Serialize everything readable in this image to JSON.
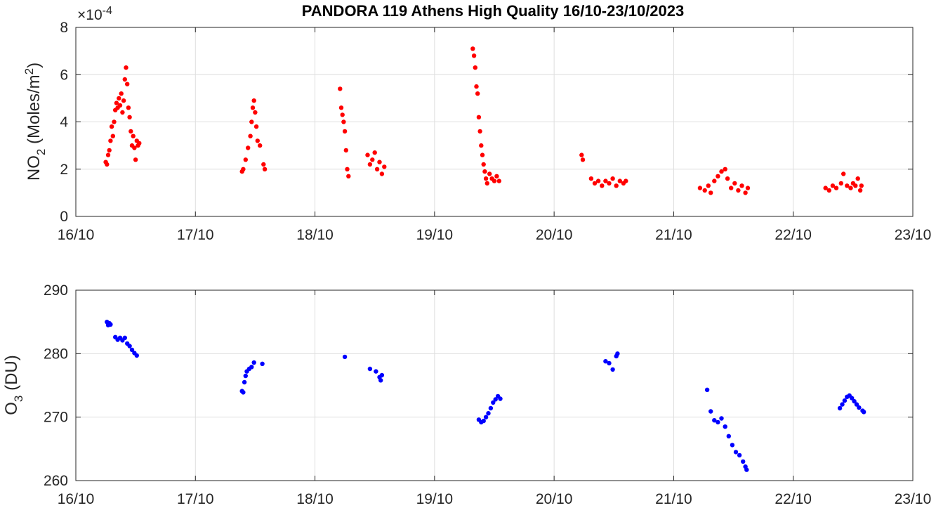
{
  "title": "PANDORA 119 Athens High Quality 16/10-23/10/2023",
  "chart_data": [
    {
      "type": "scatter",
      "ylabel_main": "NO",
      "ylabel_sub": "2",
      "ylabel_units_pre": "(Moles/m",
      "ylabel_units_sup": "2",
      "ylabel_units_post": ")",
      "y_exponent_base": "×10",
      "y_exponent_power": "-4",
      "xlim": [
        16,
        23
      ],
      "ylim": [
        0,
        8
      ],
      "x_ticks": [
        16,
        17,
        18,
        19,
        20,
        21,
        22,
        23
      ],
      "x_tick_labels": [
        "16/10",
        "17/10",
        "18/10",
        "19/10",
        "20/10",
        "21/10",
        "22/10",
        "23/10"
      ],
      "y_ticks": [
        0,
        2,
        4,
        6,
        8
      ],
      "y_tick_labels": [
        "0",
        "2",
        "4",
        "6",
        "8"
      ],
      "grid": true,
      "color": "#ff0000",
      "series": [
        {
          "points": [
            [
              16.25,
              2.3
            ],
            [
              16.26,
              2.2
            ],
            [
              16.27,
              2.6
            ],
            [
              16.28,
              2.8
            ],
            [
              16.29,
              3.2
            ],
            [
              16.3,
              3.8
            ],
            [
              16.31,
              3.4
            ],
            [
              16.32,
              4.0
            ],
            [
              16.33,
              4.5
            ],
            [
              16.34,
              4.8
            ],
            [
              16.35,
              4.6
            ],
            [
              16.36,
              5.0
            ],
            [
              16.37,
              4.7
            ],
            [
              16.38,
              5.2
            ],
            [
              16.39,
              4.4
            ],
            [
              16.4,
              4.9
            ],
            [
              16.41,
              5.8
            ],
            [
              16.42,
              6.3
            ],
            [
              16.43,
              5.6
            ],
            [
              16.44,
              4.6
            ],
            [
              16.45,
              4.2
            ],
            [
              16.46,
              3.6
            ],
            [
              16.47,
              3.0
            ],
            [
              16.48,
              3.4
            ],
            [
              16.49,
              2.9
            ],
            [
              16.5,
              2.4
            ],
            [
              16.51,
              3.2
            ],
            [
              16.52,
              3.0
            ],
            [
              16.53,
              3.1
            ],
            [
              17.39,
              1.9
            ],
            [
              17.4,
              2.0
            ],
            [
              17.42,
              2.4
            ],
            [
              17.44,
              2.9
            ],
            [
              17.46,
              3.4
            ],
            [
              17.47,
              4.0
            ],
            [
              17.48,
              4.6
            ],
            [
              17.49,
              4.9
            ],
            [
              17.5,
              4.4
            ],
            [
              17.51,
              3.8
            ],
            [
              17.52,
              3.2
            ],
            [
              17.54,
              3.0
            ],
            [
              17.57,
              2.2
            ],
            [
              17.58,
              2.0
            ],
            [
              18.21,
              5.4
            ],
            [
              18.22,
              4.6
            ],
            [
              18.23,
              4.3
            ],
            [
              18.24,
              4.0
            ],
            [
              18.25,
              3.6
            ],
            [
              18.26,
              2.8
            ],
            [
              18.27,
              2.0
            ],
            [
              18.28,
              1.7
            ],
            [
              18.44,
              2.6
            ],
            [
              18.46,
              2.2
            ],
            [
              18.48,
              2.4
            ],
            [
              18.5,
              2.7
            ],
            [
              18.52,
              2.0
            ],
            [
              18.54,
              2.3
            ],
            [
              18.56,
              1.8
            ],
            [
              18.58,
              2.1
            ],
            [
              19.32,
              7.1
            ],
            [
              19.33,
              6.8
            ],
            [
              19.34,
              6.3
            ],
            [
              19.35,
              5.5
            ],
            [
              19.36,
              5.2
            ],
            [
              19.37,
              4.2
            ],
            [
              19.38,
              3.6
            ],
            [
              19.39,
              3.0
            ],
            [
              19.4,
              2.6
            ],
            [
              19.41,
              2.2
            ],
            [
              19.42,
              1.9
            ],
            [
              19.43,
              1.6
            ],
            [
              19.44,
              1.4
            ],
            [
              19.46,
              1.8
            ],
            [
              19.48,
              1.6
            ],
            [
              19.5,
              1.5
            ],
            [
              19.52,
              1.7
            ],
            [
              19.54,
              1.5
            ],
            [
              20.23,
              2.6
            ],
            [
              20.24,
              2.4
            ],
            [
              20.31,
              1.6
            ],
            [
              20.34,
              1.4
            ],
            [
              20.37,
              1.5
            ],
            [
              20.4,
              1.3
            ],
            [
              20.43,
              1.5
            ],
            [
              20.46,
              1.4
            ],
            [
              20.49,
              1.6
            ],
            [
              20.52,
              1.3
            ],
            [
              20.55,
              1.5
            ],
            [
              20.58,
              1.4
            ],
            [
              20.6,
              1.5
            ],
            [
              21.22,
              1.2
            ],
            [
              21.26,
              1.1
            ],
            [
              21.29,
              1.3
            ],
            [
              21.31,
              1.0
            ],
            [
              21.34,
              1.5
            ],
            [
              21.37,
              1.7
            ],
            [
              21.4,
              1.9
            ],
            [
              21.43,
              2.0
            ],
            [
              21.45,
              1.6
            ],
            [
              21.48,
              1.2
            ],
            [
              21.51,
              1.4
            ],
            [
              21.54,
              1.1
            ],
            [
              21.57,
              1.3
            ],
            [
              21.6,
              1.0
            ],
            [
              21.62,
              1.2
            ],
            [
              22.27,
              1.2
            ],
            [
              22.3,
              1.1
            ],
            [
              22.33,
              1.3
            ],
            [
              22.36,
              1.2
            ],
            [
              22.4,
              1.4
            ],
            [
              22.42,
              1.8
            ],
            [
              22.45,
              1.3
            ],
            [
              22.48,
              1.2
            ],
            [
              22.5,
              1.4
            ],
            [
              22.52,
              1.3
            ],
            [
              22.54,
              1.6
            ],
            [
              22.56,
              1.1
            ],
            [
              22.57,
              1.3
            ]
          ]
        }
      ]
    },
    {
      "type": "scatter",
      "ylabel_main": "O",
      "ylabel_sub": "3",
      "ylabel_units_pre": "(DU)",
      "xlim": [
        16,
        23
      ],
      "ylim": [
        260,
        290
      ],
      "x_ticks": [
        16,
        17,
        18,
        19,
        20,
        21,
        22,
        23
      ],
      "x_tick_labels": [
        "16/10",
        "17/10",
        "18/10",
        "19/10",
        "20/10",
        "21/10",
        "22/10",
        "23/10"
      ],
      "y_ticks": [
        260,
        270,
        280,
        290
      ],
      "y_tick_labels": [
        "260",
        "270",
        "280",
        "290"
      ],
      "grid": true,
      "color": "#0000ff",
      "series": [
        {
          "points": [
            [
              16.26,
              285.0
            ],
            [
              16.27,
              284.5
            ],
            [
              16.28,
              284.8
            ],
            [
              16.29,
              284.6
            ],
            [
              16.33,
              282.6
            ],
            [
              16.35,
              282.2
            ],
            [
              16.37,
              282.5
            ],
            [
              16.39,
              282.1
            ],
            [
              16.41,
              282.5
            ],
            [
              16.43,
              281.6
            ],
            [
              16.45,
              281.2
            ],
            [
              16.47,
              280.6
            ],
            [
              16.49,
              280.1
            ],
            [
              16.51,
              279.7
            ],
            [
              17.39,
              274.1
            ],
            [
              17.4,
              273.9
            ],
            [
              17.41,
              275.5
            ],
            [
              17.42,
              276.5
            ],
            [
              17.43,
              277.2
            ],
            [
              17.45,
              277.6
            ],
            [
              17.47,
              277.9
            ],
            [
              17.49,
              278.6
            ],
            [
              17.56,
              278.4
            ],
            [
              18.25,
              279.5
            ],
            [
              18.46,
              277.6
            ],
            [
              18.51,
              277.2
            ],
            [
              18.54,
              276.3
            ],
            [
              18.55,
              275.8
            ],
            [
              18.56,
              276.6
            ],
            [
              19.37,
              269.6
            ],
            [
              19.39,
              269.2
            ],
            [
              19.41,
              269.4
            ],
            [
              19.43,
              270.0
            ],
            [
              19.45,
              270.6
            ],
            [
              19.47,
              271.4
            ],
            [
              19.49,
              272.3
            ],
            [
              19.51,
              272.8
            ],
            [
              19.53,
              273.3
            ],
            [
              19.55,
              272.9
            ],
            [
              20.43,
              278.8
            ],
            [
              20.46,
              278.5
            ],
            [
              20.49,
              277.5
            ],
            [
              20.52,
              279.6
            ],
            [
              20.53,
              280.0
            ],
            [
              21.28,
              274.3
            ],
            [
              21.31,
              270.9
            ],
            [
              21.34,
              269.5
            ],
            [
              21.37,
              269.2
            ],
            [
              21.4,
              269.8
            ],
            [
              21.43,
              268.5
            ],
            [
              21.46,
              267.0
            ],
            [
              21.49,
              265.6
            ],
            [
              21.52,
              264.5
            ],
            [
              21.55,
              264.0
            ],
            [
              21.58,
              263.0
            ],
            [
              21.6,
              262.2
            ],
            [
              21.61,
              261.7
            ],
            [
              22.39,
              271.4
            ],
            [
              22.41,
              272.0
            ],
            [
              22.43,
              272.6
            ],
            [
              22.45,
              273.2
            ],
            [
              22.47,
              273.4
            ],
            [
              22.49,
              273.0
            ],
            [
              22.51,
              272.5
            ],
            [
              22.53,
              272.0
            ],
            [
              22.55,
              271.5
            ],
            [
              22.58,
              271.0
            ],
            [
              22.59,
              270.8
            ]
          ]
        }
      ]
    }
  ]
}
